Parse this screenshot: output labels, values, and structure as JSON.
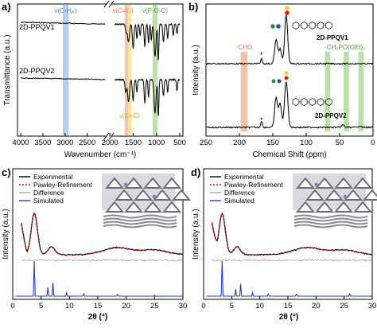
{
  "panel_labels": [
    "a)",
    "b)",
    "c)",
    "d)"
  ],
  "chart_data": [
    {
      "panel": "a)",
      "type": "line",
      "xlabel": "Wavenumber (cm⁻¹)",
      "ylabel": "Transmittance (a.u.)",
      "xlim": [
        4000,
        500
      ],
      "x_break": [
        2100,
        1900
      ],
      "xticks": [
        4000,
        3500,
        3000,
        2500,
        2000,
        1500,
        1000,
        500
      ],
      "series": [
        {
          "name": "2D-PPQV1"
        },
        {
          "name": "2D-PPQV2"
        }
      ],
      "bands": [
        {
          "label": "ν(C-Hₐᵣ)",
          "center": 2985,
          "width": 130,
          "color": "#a9c8ea"
        },
        {
          "label": "ν(C=O)",
          "center": 1650,
          "width": 60,
          "color": "#f5b796"
        },
        {
          "label": "ν(C=C)",
          "center": 1580,
          "width": 50,
          "color": "#f7e08e"
        },
        {
          "label": "ν(P-O-C)",
          "center": 1030,
          "width": 110,
          "color": "#b6dba1"
        }
      ]
    },
    {
      "panel": "b)",
      "type": "line",
      "xlabel": "Chemical Shift (ppm)",
      "ylabel": "Intensity (a.u.)",
      "xlim": [
        250,
        0
      ],
      "xticks": [
        250,
        200,
        150,
        100,
        50,
        0
      ],
      "series": [
        {
          "name": "2D-PPQV1"
        },
        {
          "name": "2D-PPQV2"
        }
      ],
      "bands": [
        {
          "label": "-CHO",
          "center": 193,
          "width": 10,
          "color": "#f5b796"
        },
        {
          "label": "-CH₂PO(OEt)₂",
          "center": 40,
          "width": 58,
          "color": "#b6dba1"
        }
      ],
      "annotations": [
        "*",
        "*"
      ]
    },
    {
      "panel": "c)",
      "type": "line",
      "xlabel": "2θ (°)",
      "ylabel": "Intensity (a.u.)",
      "xlim": [
        0,
        30
      ],
      "xticks": [
        0,
        5,
        10,
        15,
        20,
        25,
        30
      ],
      "series": [
        {
          "name": "Experimental",
          "color": "#000000"
        },
        {
          "name": "Pawley-Refinement",
          "color": "#e41a1c"
        },
        {
          "name": "Difference",
          "color": "#aaaaaa"
        },
        {
          "name": "Simulated",
          "color": "#1f3fbf"
        }
      ],
      "main_peak_2theta": 3.8,
      "simulated_peaks": [
        {
          "x": 3.8,
          "y": 1.0
        },
        {
          "x": 6.2,
          "y": 0.25
        },
        {
          "x": 7.1,
          "y": 0.38
        },
        {
          "x": 9.5,
          "y": 0.1
        },
        {
          "x": 12.5,
          "y": 0.07
        },
        {
          "x": 18.5,
          "y": 0.05
        },
        {
          "x": 25.0,
          "y": 0.03
        }
      ]
    },
    {
      "panel": "d)",
      "type": "line",
      "xlabel": "2θ (°)",
      "ylabel": "Intensity (a.u.)",
      "xlim": [
        0,
        30
      ],
      "xticks": [
        0,
        5,
        10,
        15,
        20,
        25,
        30
      ],
      "series": [
        {
          "name": "Experimental",
          "color": "#000000"
        },
        {
          "name": "Pawley-Refinement",
          "color": "#e41a1c"
        },
        {
          "name": "Difference",
          "color": "#aaaaaa"
        },
        {
          "name": "Simulated",
          "color": "#1f3fbf"
        }
      ],
      "main_peak_2theta": 3.3,
      "simulated_peaks": [
        {
          "x": 3.3,
          "y": 1.0
        },
        {
          "x": 5.7,
          "y": 0.2
        },
        {
          "x": 6.6,
          "y": 0.35
        },
        {
          "x": 8.7,
          "y": 0.1
        },
        {
          "x": 11.5,
          "y": 0.06
        },
        {
          "x": 16.5,
          "y": 0.05
        },
        {
          "x": 26.0,
          "y": 0.06
        }
      ]
    }
  ]
}
